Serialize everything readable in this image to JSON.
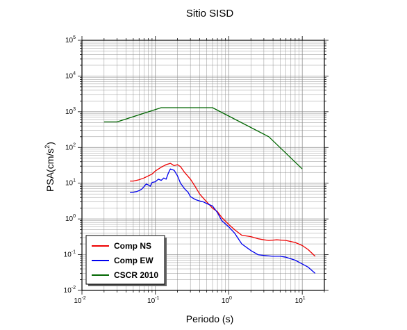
{
  "chart_data": {
    "type": "line",
    "title": "Sitio SISD",
    "xlabel": "Periodo (s)",
    "ylabel": "PSA(cm/s",
    "ylabel_sup": "2",
    "ylabel_close": ")",
    "xscale": "log",
    "yscale": "log",
    "xlim": [
      0.01,
      20
    ],
    "ylim": [
      0.01,
      100000
    ],
    "grid": true,
    "legend_position": "bottom-left",
    "x_ticks": [
      {
        "base": "10",
        "exp": "-2"
      },
      {
        "base": "10",
        "exp": "-1"
      },
      {
        "base": "10",
        "exp": "0"
      },
      {
        "base": "10",
        "exp": "1"
      }
    ],
    "y_ticks": [
      {
        "base": "10",
        "exp": "-2"
      },
      {
        "base": "10",
        "exp": "-1"
      },
      {
        "base": "10",
        "exp": "0"
      },
      {
        "base": "10",
        "exp": "1"
      },
      {
        "base": "10",
        "exp": "2"
      },
      {
        "base": "10",
        "exp": "3"
      },
      {
        "base": "10",
        "exp": "4"
      },
      {
        "base": "10",
        "exp": "5"
      }
    ],
    "series": [
      {
        "name": "Comp NS",
        "color": "#ee0000",
        "x": [
          0.045,
          0.05,
          0.055,
          0.06,
          0.07,
          0.08,
          0.09,
          0.1,
          0.12,
          0.14,
          0.16,
          0.18,
          0.2,
          0.22,
          0.25,
          0.3,
          0.35,
          0.4,
          0.45,
          0.5,
          0.6,
          0.7,
          0.8,
          1.0,
          1.2,
          1.5,
          2.0,
          2.5,
          3.0,
          3.5,
          4.5,
          6.0,
          8.0,
          10.0,
          12.0,
          15.0
        ],
        "y": [
          11.5,
          11.5,
          12,
          12.5,
          14,
          16,
          18,
          22,
          28,
          33,
          36,
          31,
          33,
          29,
          20,
          13,
          8,
          5,
          3.8,
          3.0,
          2.0,
          1.6,
          1.1,
          0.7,
          0.5,
          0.35,
          0.32,
          0.28,
          0.26,
          0.25,
          0.26,
          0.25,
          0.22,
          0.18,
          0.14,
          0.09
        ]
      },
      {
        "name": "Comp EW",
        "color": "#0000ee",
        "x": [
          0.045,
          0.05,
          0.055,
          0.06,
          0.065,
          0.07,
          0.075,
          0.08,
          0.085,
          0.09,
          0.1,
          0.11,
          0.12,
          0.13,
          0.14,
          0.15,
          0.16,
          0.18,
          0.2,
          0.22,
          0.25,
          0.28,
          0.3,
          0.35,
          0.4,
          0.45,
          0.5,
          0.6,
          0.7,
          0.8,
          1.0,
          1.2,
          1.5,
          2.0,
          2.5,
          3.0,
          4.0,
          5.0,
          6.0,
          8.0,
          10.0,
          12.0,
          15.0
        ],
        "y": [
          5.5,
          5.6,
          5.8,
          6.2,
          6.8,
          8.0,
          9.5,
          9.0,
          8.2,
          10.5,
          11.0,
          13.0,
          12.0,
          14.0,
          13.0,
          19.0,
          25.0,
          23.0,
          16.0,
          10.0,
          7.0,
          5.5,
          4.2,
          3.5,
          3.2,
          3.0,
          2.7,
          2.3,
          1.5,
          0.9,
          0.6,
          0.4,
          0.2,
          0.13,
          0.1,
          0.095,
          0.09,
          0.09,
          0.085,
          0.07,
          0.055,
          0.045,
          0.03
        ]
      },
      {
        "name": "CSCR 2010",
        "color": "#006600",
        "x": [
          0.02,
          0.03,
          0.12,
          0.6,
          3.5,
          10.0
        ],
        "y": [
          520,
          520,
          1300,
          1300,
          200,
          25
        ]
      }
    ]
  }
}
